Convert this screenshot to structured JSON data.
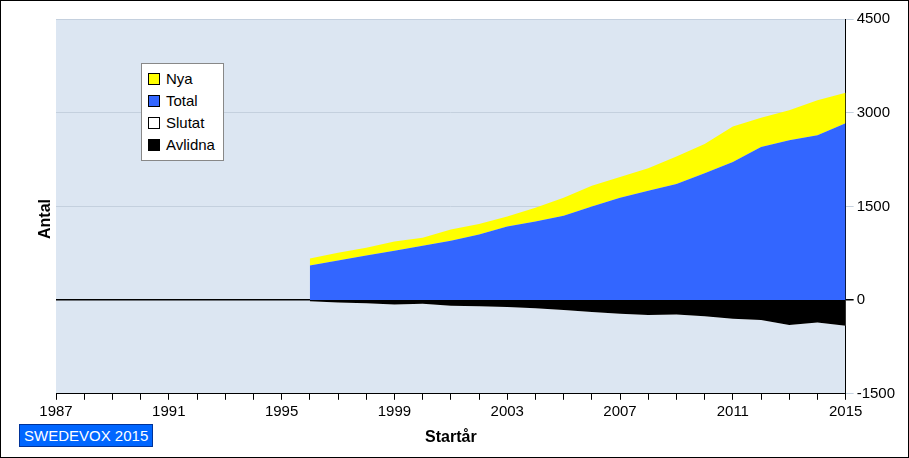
{
  "chart_data": {
    "type": "area",
    "xlabel": "Startår",
    "ylabel": "Antal",
    "annotation": "SWEDEVOX 2015",
    "categories": [
      "1987",
      null,
      null,
      null,
      "1991",
      null,
      null,
      null,
      "1995",
      null,
      null,
      null,
      "1999",
      null,
      null,
      null,
      "2003",
      null,
      null,
      null,
      "2007",
      null,
      null,
      null,
      "2011",
      null,
      null,
      null,
      "2015"
    ],
    "series": [
      {
        "name": "Nya",
        "color": "#ffff00",
        "values": [
          null,
          null,
          null,
          null,
          null,
          null,
          null,
          null,
          null,
          110,
          125,
          125,
          150,
          130,
          180,
          170,
          160,
          220,
          290,
          330,
          330,
          360,
          440,
          470,
          570,
          470,
          480,
          560,
          490
        ]
      },
      {
        "name": "Total",
        "color": "#3366ff",
        "values": [
          null,
          null,
          null,
          null,
          null,
          null,
          null,
          null,
          null,
          555,
          635,
          715,
          790,
          870,
          950,
          1050,
          1180,
          1260,
          1350,
          1500,
          1640,
          1750,
          1860,
          2030,
          2210,
          2450,
          2560,
          2640,
          2830
        ]
      },
      {
        "name": "Slutat",
        "color": "#ffffff",
        "values": [
          null,
          null,
          null,
          null,
          null,
          null,
          null,
          null,
          null,
          0,
          0,
          0,
          0,
          0,
          0,
          0,
          0,
          0,
          0,
          0,
          0,
          0,
          0,
          0,
          0,
          0,
          0,
          0,
          0
        ]
      },
      {
        "name": "Avlidna",
        "color": "#000000",
        "values": [
          null,
          null,
          null,
          null,
          null,
          null,
          null,
          null,
          null,
          -20,
          -40,
          -50,
          -70,
          -60,
          -90,
          -100,
          -110,
          -130,
          -160,
          -190,
          -220,
          -240,
          -230,
          -260,
          -300,
          -320,
          -400,
          -360,
          -410
        ]
      }
    ],
    "stacked": true,
    "legend": "upper left",
    "grid": true,
    "ylim": [
      -1500,
      4500
    ],
    "yticks": [
      -1500,
      0,
      1500,
      3000,
      4500
    ]
  }
}
